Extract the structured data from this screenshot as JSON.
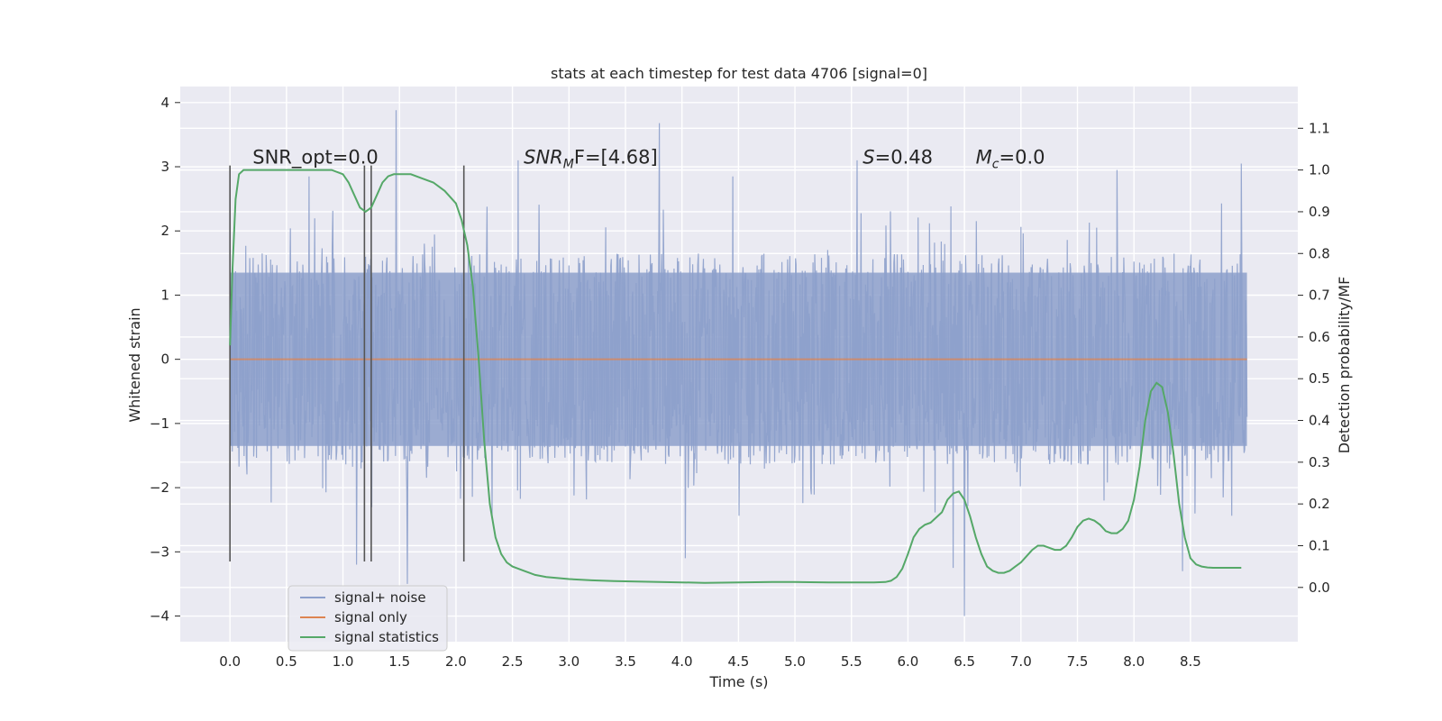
{
  "chart_data": {
    "type": "line",
    "title": "stats at each timestep for test data 4706 [signal=0]",
    "xlabel": "Time (s)",
    "ylabel": "Whitened strain",
    "y2label": "Detection probability/MF",
    "xlim": [
      -0.44,
      9.45
    ],
    "ylim": [
      -4.4,
      4.25
    ],
    "y2lim": [
      -0.13,
      1.2
    ],
    "x_ticks": [
      "0.0",
      "0.5",
      "1.0",
      "1.5",
      "2.0",
      "2.5",
      "3.0",
      "3.5",
      "4.0",
      "4.5",
      "5.0",
      "5.5",
      "6.0",
      "6.5",
      "7.0",
      "7.5",
      "8.0",
      "8.5"
    ],
    "y_ticks": [
      "4",
      "3",
      "2",
      "1",
      "0",
      "−1",
      "−2",
      "−3",
      "−4"
    ],
    "y2_ticks": [
      "1.1",
      "1.0",
      "0.9",
      "0.8",
      "0.7",
      "0.6",
      "0.5",
      "0.4",
      "0.3",
      "0.2",
      "0.1",
      "0.0"
    ],
    "grid": true,
    "legend_position": "lower-left",
    "annotations": [
      {
        "text": "SNR_opt=0.0",
        "x": 0.2,
        "y": 3.05
      },
      {
        "pre": "SNR",
        "sub": "M",
        "post": "F=[4.68]",
        "x": 2.6,
        "y": 3.05
      },
      {
        "pre": "S",
        "sub": "",
        "post": "=0.48",
        "x": 5.6,
        "y": 3.05
      },
      {
        "pre": "M",
        "sub": "c",
        "post": "=0.0",
        "x": 6.6,
        "y": 3.05
      }
    ],
    "vertical_markers": [
      0.0,
      1.19,
      1.25,
      2.07
    ],
    "marker_range": [
      -3.15,
      3.02
    ],
    "series": [
      {
        "name": "signal+ noise",
        "color": "#8da0cb",
        "x_range": [
          0.0,
          9.0
        ],
        "body_range": [
          -1.35,
          1.35
        ],
        "samples": 1800,
        "spikes": [
          {
            "x": 1.47,
            "y": 3.88
          },
          {
            "x": 3.8,
            "y": 3.68
          },
          {
            "x": 8.95,
            "y": 3.05
          },
          {
            "x": 6.5,
            "y": -4.0
          },
          {
            "x": 1.57,
            "y": -3.5
          },
          {
            "x": 1.12,
            "y": -3.2
          },
          {
            "x": 8.43,
            "y": -3.3
          },
          {
            "x": 6.4,
            "y": -3.25
          },
          {
            "x": 4.03,
            "y": -3.1
          },
          {
            "x": 2.55,
            "y": 3.1
          },
          {
            "x": 5.55,
            "y": 3.1
          },
          {
            "x": 7.85,
            "y": 2.95
          },
          {
            "x": 4.45,
            "y": 2.85
          },
          {
            "x": 0.7,
            "y": 2.85
          }
        ]
      },
      {
        "name": "signal only",
        "color": "#dd8452",
        "x": [
          0.0,
          9.0
        ],
        "y": [
          0.0,
          0.0
        ]
      },
      {
        "name": "signal statistics",
        "color": "#55a868",
        "axis": "right",
        "x": [
          0.0,
          0.02,
          0.05,
          0.08,
          0.12,
          0.18,
          0.25,
          0.35,
          0.5,
          0.7,
          0.9,
          1.0,
          1.05,
          1.1,
          1.15,
          1.2,
          1.25,
          1.3,
          1.35,
          1.4,
          1.45,
          1.5,
          1.55,
          1.6,
          1.7,
          1.8,
          1.9,
          2.0,
          2.05,
          2.1,
          2.15,
          2.2,
          2.25,
          2.3,
          2.35,
          2.4,
          2.45,
          2.5,
          2.55,
          2.6,
          2.65,
          2.7,
          2.8,
          3.0,
          3.2,
          3.4,
          3.6,
          3.8,
          4.0,
          4.2,
          4.5,
          4.8,
          5.0,
          5.3,
          5.5,
          5.7,
          5.8,
          5.85,
          5.9,
          5.95,
          6.0,
          6.05,
          6.1,
          6.15,
          6.2,
          6.3,
          6.35,
          6.4,
          6.45,
          6.5,
          6.55,
          6.6,
          6.65,
          6.7,
          6.75,
          6.8,
          6.85,
          6.9,
          6.95,
          7.0,
          7.05,
          7.1,
          7.15,
          7.2,
          7.25,
          7.3,
          7.35,
          7.4,
          7.45,
          7.5,
          7.55,
          7.6,
          7.65,
          7.7,
          7.75,
          7.8,
          7.85,
          7.9,
          7.95,
          8.0,
          8.05,
          8.1,
          8.15,
          8.2,
          8.25,
          8.3,
          8.35,
          8.4,
          8.45,
          8.5,
          8.55,
          8.6,
          8.65,
          8.7,
          8.75,
          8.8,
          8.85,
          8.9,
          8.95
        ],
        "y": [
          0.58,
          0.75,
          0.93,
          0.99,
          1.0,
          1.0,
          1.0,
          1.0,
          1.0,
          1.0,
          1.0,
          0.99,
          0.97,
          0.94,
          0.91,
          0.9,
          0.91,
          0.94,
          0.97,
          0.985,
          0.99,
          0.99,
          0.99,
          0.99,
          0.98,
          0.97,
          0.95,
          0.92,
          0.88,
          0.82,
          0.72,
          0.55,
          0.35,
          0.2,
          0.12,
          0.08,
          0.06,
          0.05,
          0.045,
          0.04,
          0.035,
          0.03,
          0.025,
          0.02,
          0.017,
          0.015,
          0.014,
          0.013,
          0.012,
          0.011,
          0.012,
          0.013,
          0.013,
          0.012,
          0.012,
          0.012,
          0.013,
          0.016,
          0.025,
          0.045,
          0.08,
          0.12,
          0.14,
          0.15,
          0.155,
          0.18,
          0.21,
          0.225,
          0.23,
          0.21,
          0.17,
          0.12,
          0.08,
          0.05,
          0.04,
          0.035,
          0.035,
          0.04,
          0.05,
          0.06,
          0.075,
          0.09,
          0.1,
          0.1,
          0.095,
          0.09,
          0.09,
          0.1,
          0.12,
          0.145,
          0.16,
          0.165,
          0.16,
          0.15,
          0.135,
          0.13,
          0.13,
          0.14,
          0.16,
          0.21,
          0.29,
          0.4,
          0.47,
          0.49,
          0.48,
          0.42,
          0.32,
          0.2,
          0.12,
          0.07,
          0.055,
          0.05,
          0.048,
          0.047,
          0.047,
          0.047,
          0.047,
          0.047,
          0.047
        ]
      }
    ]
  }
}
